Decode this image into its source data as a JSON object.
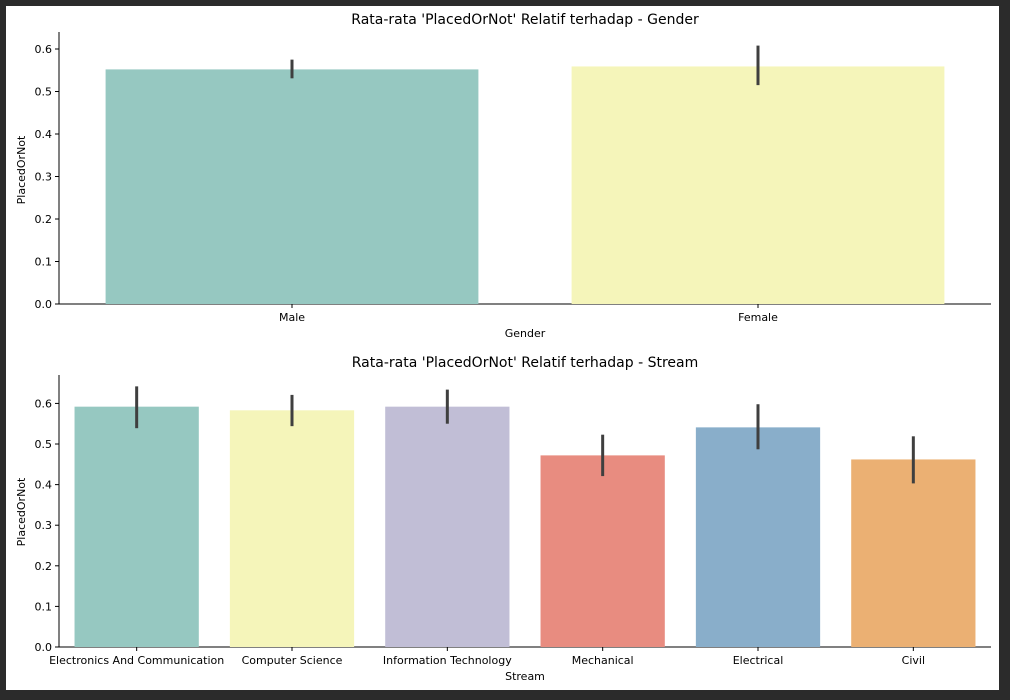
{
  "colors": {
    "background": "#ffffff",
    "frame": "#2b2b2b",
    "errorbar": "#3f3f3f",
    "axis": "#000000"
  },
  "chart_data": [
    {
      "type": "bar",
      "title": "Rata-rata 'PlacedOrNot' Relatif terhadap - Gender",
      "xlabel": "Gender",
      "ylabel": "PlacedOrNot",
      "categories": [
        "Male",
        "Female"
      ],
      "values": [
        0.552,
        0.559
      ],
      "error_low": [
        0.531,
        0.515
      ],
      "error_high": [
        0.575,
        0.608
      ],
      "colors": [
        "#96c8c1",
        "#f5f5ba"
      ],
      "ylim": [
        0,
        0.64
      ],
      "yticks": [
        0.0,
        0.1,
        0.2,
        0.3,
        0.4,
        0.5,
        0.6
      ],
      "ytick_labels": [
        "0.0",
        "0.1",
        "0.2",
        "0.3",
        "0.4",
        "0.5",
        "0.6"
      ],
      "grid": false
    },
    {
      "type": "bar",
      "title": "Rata-rata 'PlacedOrNot' Relatif terhadap - Stream",
      "xlabel": "Stream",
      "ylabel": "PlacedOrNot",
      "categories": [
        "Electronics And Communication",
        "Computer Science",
        "Information Technology",
        "Mechanical",
        "Electrical",
        "Civil"
      ],
      "values": [
        0.592,
        0.583,
        0.592,
        0.472,
        0.541,
        0.462
      ],
      "error_low": [
        0.539,
        0.544,
        0.55,
        0.421,
        0.487,
        0.403
      ],
      "error_high": [
        0.642,
        0.621,
        0.634,
        0.523,
        0.598,
        0.519
      ],
      "colors": [
        "#96c8c1",
        "#f5f5ba",
        "#c1bed6",
        "#e88c80",
        "#89aeca",
        "#ebb073"
      ],
      "ylim": [
        0,
        0.67
      ],
      "yticks": [
        0.0,
        0.1,
        0.2,
        0.3,
        0.4,
        0.5,
        0.6
      ],
      "ytick_labels": [
        "0.0",
        "0.1",
        "0.2",
        "0.3",
        "0.4",
        "0.5",
        "0.6"
      ],
      "grid": false
    }
  ]
}
